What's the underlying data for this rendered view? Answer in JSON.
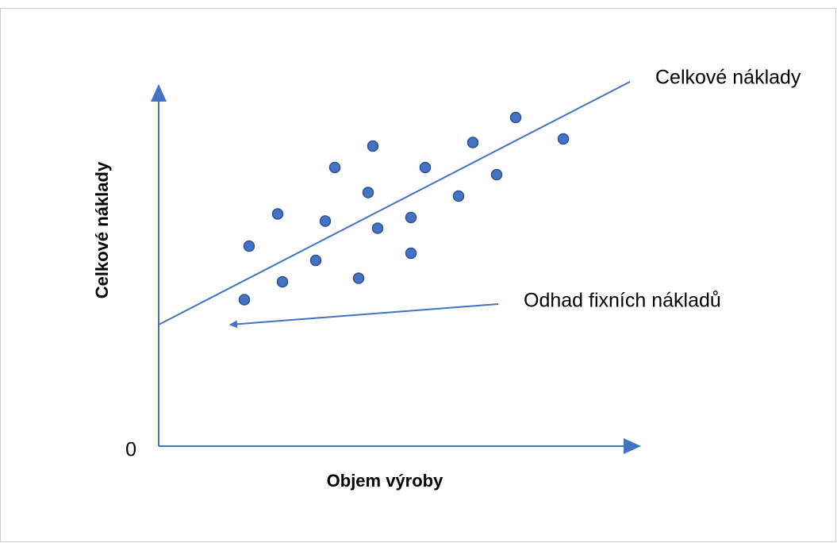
{
  "chart_data": {
    "type": "scatter",
    "x_label": "Objem výroby",
    "y_label": "Celkové náklady",
    "xlim": [
      0,
      100
    ],
    "ylim": [
      0,
      100
    ],
    "yticks": [
      0
    ],
    "color": "#4472c4",
    "x": [
      18,
      19,
      25,
      26,
      33,
      35,
      37,
      42,
      44,
      45,
      46,
      53,
      53,
      56,
      63,
      66,
      71,
      75,
      85
    ],
    "values": [
      41,
      56,
      65,
      46,
      52,
      63,
      78,
      47,
      71,
      84,
      61,
      54,
      64,
      78,
      70,
      85,
      76,
      92,
      86
    ],
    "trend_line": {
      "name": "Celkové náklady",
      "x": [
        0,
        99
      ],
      "values": [
        34,
        102
      ]
    },
    "annotations": [
      "Odhad fixních nákladů"
    ]
  }
}
